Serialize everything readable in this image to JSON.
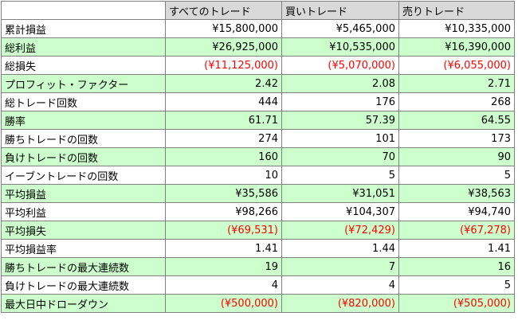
{
  "columns": [
    "すべてのトレード",
    "買いトレード",
    "売りトレード"
  ],
  "colors": {
    "header_bg": "#d9d9d9",
    "shaded_row_bg": "#ccffcc",
    "negative_text": "#ff0000",
    "grid": "#808080"
  },
  "rows": [
    {
      "label": "累計損益",
      "all": "¥15,800,000",
      "buy": "¥5,465,000",
      "sell": "¥10,335,000",
      "shaded": false,
      "negative": false
    },
    {
      "label": "総利益",
      "all": "¥26,925,000",
      "buy": "¥10,535,000",
      "sell": "¥16,390,000",
      "shaded": true,
      "negative": false
    },
    {
      "label": "総損失",
      "all": "(¥11,125,000)",
      "buy": "(¥5,070,000)",
      "sell": "(¥6,055,000)",
      "shaded": false,
      "negative": true
    },
    {
      "label": "プロフィット・ファクター",
      "all": "2.42",
      "buy": "2.08",
      "sell": "2.71",
      "shaded": true,
      "negative": false
    },
    {
      "label": "総トレード回数",
      "all": "444",
      "buy": "176",
      "sell": "268",
      "shaded": false,
      "negative": false
    },
    {
      "label": "勝率",
      "all": "61.71",
      "buy": "57.39",
      "sell": "64.55",
      "shaded": true,
      "negative": false
    },
    {
      "label": "勝ちトレードの回数",
      "all": "274",
      "buy": "101",
      "sell": "173",
      "shaded": false,
      "negative": false
    },
    {
      "label": "負けトレードの回数",
      "all": "160",
      "buy": "70",
      "sell": "90",
      "shaded": true,
      "negative": false
    },
    {
      "label": "イーブントレードの回数",
      "all": "10",
      "buy": "5",
      "sell": "5",
      "shaded": false,
      "negative": false
    },
    {
      "label": "平均損益",
      "all": "¥35,586",
      "buy": "¥31,051",
      "sell": "¥38,563",
      "shaded": true,
      "negative": false
    },
    {
      "label": "平均利益",
      "all": "¥98,266",
      "buy": "¥104,307",
      "sell": "¥94,740",
      "shaded": false,
      "negative": false
    },
    {
      "label": "平均損失",
      "all": "(¥69,531)",
      "buy": "(¥72,429)",
      "sell": "(¥67,278)",
      "shaded": true,
      "negative": true
    },
    {
      "label": "平均損益率",
      "all": "1.41",
      "buy": "1.44",
      "sell": "1.41",
      "shaded": false,
      "negative": false
    },
    {
      "label": "勝ちトレードの最大連続数",
      "all": "19",
      "buy": "7",
      "sell": "16",
      "shaded": true,
      "negative": false
    },
    {
      "label": "負けトレードの最大連続数",
      "all": "4",
      "buy": "4",
      "sell": "5",
      "shaded": false,
      "negative": false
    },
    {
      "label": "最大日中ドローダウン",
      "all": "(¥500,000)",
      "buy": "(¥820,000)",
      "sell": "(¥505,000)",
      "shaded": true,
      "negative": true
    }
  ]
}
